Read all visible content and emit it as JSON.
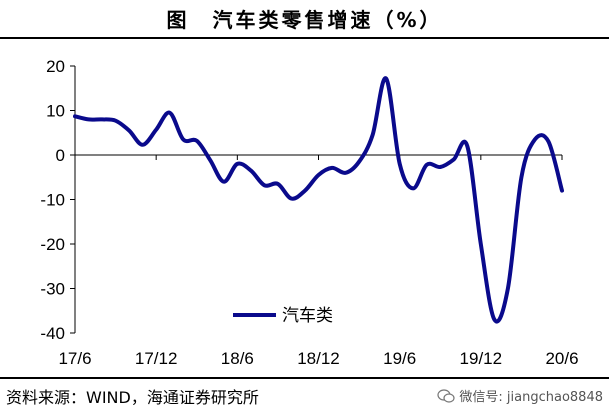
{
  "title": "图　汽车类零售增速（%）",
  "source": "资料来源：WIND，海通证券研究所",
  "watermark": "微信号: jiangchao8848",
  "chart_data": {
    "type": "line",
    "title": "图　汽车类零售增速（%）",
    "xlabel": "",
    "ylabel": "",
    "ylim": [
      -40,
      20
    ],
    "yticks": [
      20,
      10,
      0,
      -10,
      -20,
      -30,
      -40
    ],
    "xtick_labels": [
      "17/6",
      "17/12",
      "18/6",
      "18/12",
      "19/6",
      "19/12",
      "20/6"
    ],
    "xtick_index": [
      0,
      6,
      12,
      18,
      24,
      30,
      36
    ],
    "legend_position": "bottom-left",
    "grid": false,
    "color": "#0a0a8c",
    "series": [
      {
        "name": "汽车类",
        "x": [
          "2017-06",
          "2017-07",
          "2017-08",
          "2017-09",
          "2017-10",
          "2017-11",
          "2017-12",
          "2018-01",
          "2018-02",
          "2018-03",
          "2018-04",
          "2018-05",
          "2018-06",
          "2018-07",
          "2018-08",
          "2018-09",
          "2018-10",
          "2018-11",
          "2018-12",
          "2019-01",
          "2019-02",
          "2019-03",
          "2019-04",
          "2019-05",
          "2019-06",
          "2019-07",
          "2019-08",
          "2019-09",
          "2019-10",
          "2019-11",
          "2019-12",
          "2020-01",
          "2020-02",
          "2020-03",
          "2020-04",
          "2020-05",
          "2020-06"
        ],
        "values": [
          8.7,
          8.0,
          8.0,
          7.7,
          5.5,
          2.3,
          5.7,
          9.5,
          3.5,
          3.2,
          -1.2,
          -6.0,
          -2.0,
          -3.5,
          -6.8,
          -6.5,
          -9.8,
          -8.0,
          -4.5,
          -2.9,
          -4.0,
          -1.5,
          4.5,
          17.2,
          -2.0,
          -7.5,
          -2.2,
          -2.7,
          -1.0,
          2.0,
          -20.0,
          -37.0,
          -30.0,
          -5.0,
          3.5,
          3.0,
          -8.0
        ]
      }
    ]
  }
}
